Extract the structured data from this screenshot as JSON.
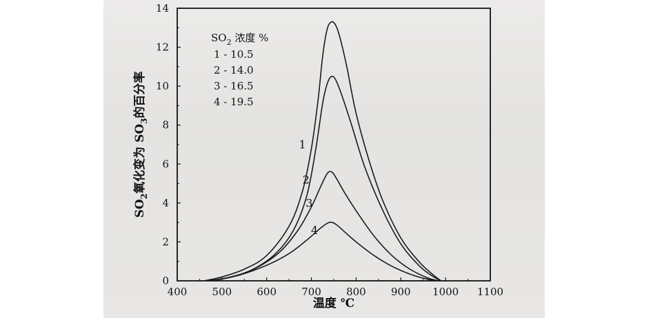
{
  "chart_data": {
    "type": "line",
    "xlabel": "温度 ℃",
    "ylabel_parts": [
      "SO",
      "2",
      "氧化变为 SO",
      "3",
      "的百分率"
    ],
    "xlim": [
      400,
      1100
    ],
    "ylim": [
      0,
      14
    ],
    "xticks": [
      400,
      500,
      600,
      700,
      800,
      900,
      1000,
      1100
    ],
    "yticks": [
      0,
      2,
      4,
      6,
      8,
      10,
      12,
      14
    ],
    "legend": {
      "title_parts": [
        "SO",
        "2",
        " 浓度 %"
      ],
      "entries": [
        "1 - 10.5",
        "2 - 14.0",
        "3 - 16.5",
        "4 - 19.5"
      ],
      "placement": "top-left"
    },
    "series": [
      {
        "name": "1",
        "points": [
          [
            460,
            0
          ],
          [
            500,
            0.2
          ],
          [
            550,
            0.6
          ],
          [
            600,
            1.3
          ],
          [
            650,
            2.8
          ],
          [
            680,
            4.6
          ],
          [
            700,
            6.8
          ],
          [
            715,
            9.3
          ],
          [
            725,
            11.5
          ],
          [
            735,
            12.9
          ],
          [
            745,
            13.3
          ],
          [
            755,
            13.1
          ],
          [
            765,
            12.4
          ],
          [
            780,
            10.9
          ],
          [
            800,
            8.6
          ],
          [
            830,
            6.1
          ],
          [
            860,
            4.1
          ],
          [
            900,
            2.2
          ],
          [
            940,
            1.0
          ],
          [
            970,
            0.35
          ],
          [
            990,
            0
          ]
        ]
      },
      {
        "name": "2",
        "points": [
          [
            470,
            0
          ],
          [
            520,
            0.2
          ],
          [
            570,
            0.6
          ],
          [
            620,
            1.4
          ],
          [
            660,
            2.6
          ],
          [
            690,
            4.4
          ],
          [
            710,
            6.8
          ],
          [
            725,
            9.1
          ],
          [
            735,
            10.1
          ],
          [
            745,
            10.5
          ],
          [
            755,
            10.3
          ],
          [
            770,
            9.4
          ],
          [
            790,
            8.0
          ],
          [
            820,
            5.8
          ],
          [
            860,
            3.6
          ],
          [
            900,
            1.9
          ],
          [
            940,
            0.8
          ],
          [
            970,
            0.25
          ],
          [
            990,
            0
          ]
        ]
      },
      {
        "name": "3",
        "points": [
          [
            475,
            0
          ],
          [
            530,
            0.25
          ],
          [
            580,
            0.7
          ],
          [
            630,
            1.5
          ],
          [
            670,
            2.6
          ],
          [
            700,
            3.8
          ],
          [
            720,
            4.8
          ],
          [
            735,
            5.5
          ],
          [
            745,
            5.6
          ],
          [
            755,
            5.3
          ],
          [
            775,
            4.5
          ],
          [
            800,
            3.6
          ],
          [
            840,
            2.3
          ],
          [
            880,
            1.3
          ],
          [
            920,
            0.6
          ],
          [
            960,
            0.15
          ],
          [
            985,
            0
          ]
        ]
      },
      {
        "name": "4",
        "points": [
          [
            480,
            0
          ],
          [
            540,
            0.3
          ],
          [
            600,
            0.8
          ],
          [
            650,
            1.4
          ],
          [
            690,
            2.1
          ],
          [
            720,
            2.7
          ],
          [
            740,
            3.0
          ],
          [
            755,
            2.9
          ],
          [
            775,
            2.5
          ],
          [
            800,
            2.0
          ],
          [
            840,
            1.3
          ],
          [
            880,
            0.75
          ],
          [
            920,
            0.35
          ],
          [
            960,
            0.08
          ],
          [
            985,
            0
          ]
        ]
      }
    ],
    "curve_label_positions": [
      {
        "label": "1",
        "x": 680,
        "y": 6.8
      },
      {
        "label": "2",
        "x": 688,
        "y": 5.0
      },
      {
        "label": "3",
        "x": 695,
        "y": 3.8
      },
      {
        "label": "4",
        "x": 707,
        "y": 2.4
      }
    ],
    "grid": false
  }
}
